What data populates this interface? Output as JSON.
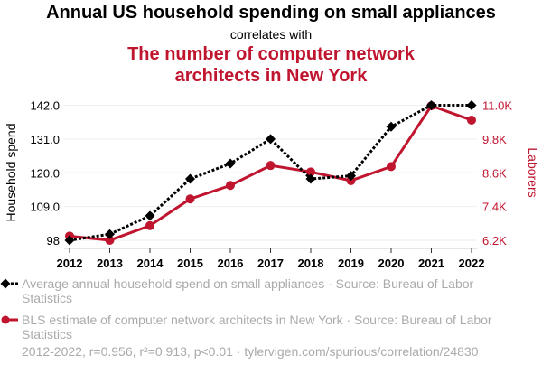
{
  "title": "Annual US household spending on small appliances",
  "subtitle": "correlates with",
  "title2_line1": "The number of computer network",
  "title2_line2": "architects in New York",
  "legend1": "Average annual household spend on small appliances · Source: Bureau of Labor Statistics",
  "legend2": "BLS estimate of computer network architects in New York · Source: Bureau of Labor Statistics",
  "footer": "2012-2022, r=0.956, r²=0.913, p<0.01 · tylervigen.com/spurious/correlation/24830",
  "colors": {
    "series1": "#000000",
    "series2": "#c0152f"
  },
  "chart_data": {
    "type": "line",
    "x": [
      2012,
      2013,
      2014,
      2015,
      2016,
      2017,
      2018,
      2019,
      2020,
      2021,
      2022
    ],
    "xtick_labels": [
      "2012",
      "2013",
      "2014",
      "2015",
      "2016",
      "2017",
      "2018",
      "2019",
      "2020",
      "2021",
      "2022"
    ],
    "ylabel": "Household spend",
    "ylabel_right": "Laborers",
    "ylim": [
      98,
      142
    ],
    "ytick_labels": [
      "98",
      "109.0",
      "120.0",
      "131.0",
      "142.0"
    ],
    "yticks": [
      98,
      109,
      120,
      131,
      142
    ],
    "ylim_right": [
      6200,
      11000
    ],
    "ytick_labels_right": [
      "6.2K",
      "7.4K",
      "8.6K",
      "9.8K",
      "11.0K"
    ],
    "yticks_right": [
      6200,
      7400,
      8600,
      9800,
      11000
    ],
    "series": [
      {
        "name": "Average annual household spend on small appliances",
        "axis": "left",
        "values": [
          98,
          100,
          106,
          118,
          123,
          131,
          118,
          119,
          135,
          142,
          142
        ]
      },
      {
        "name": "BLS estimate of computer network architects in New York",
        "axis": "right",
        "values": [
          6350,
          6200,
          6720,
          7670,
          8150,
          8860,
          8630,
          8320,
          8820,
          10980,
          10470
        ]
      }
    ]
  }
}
